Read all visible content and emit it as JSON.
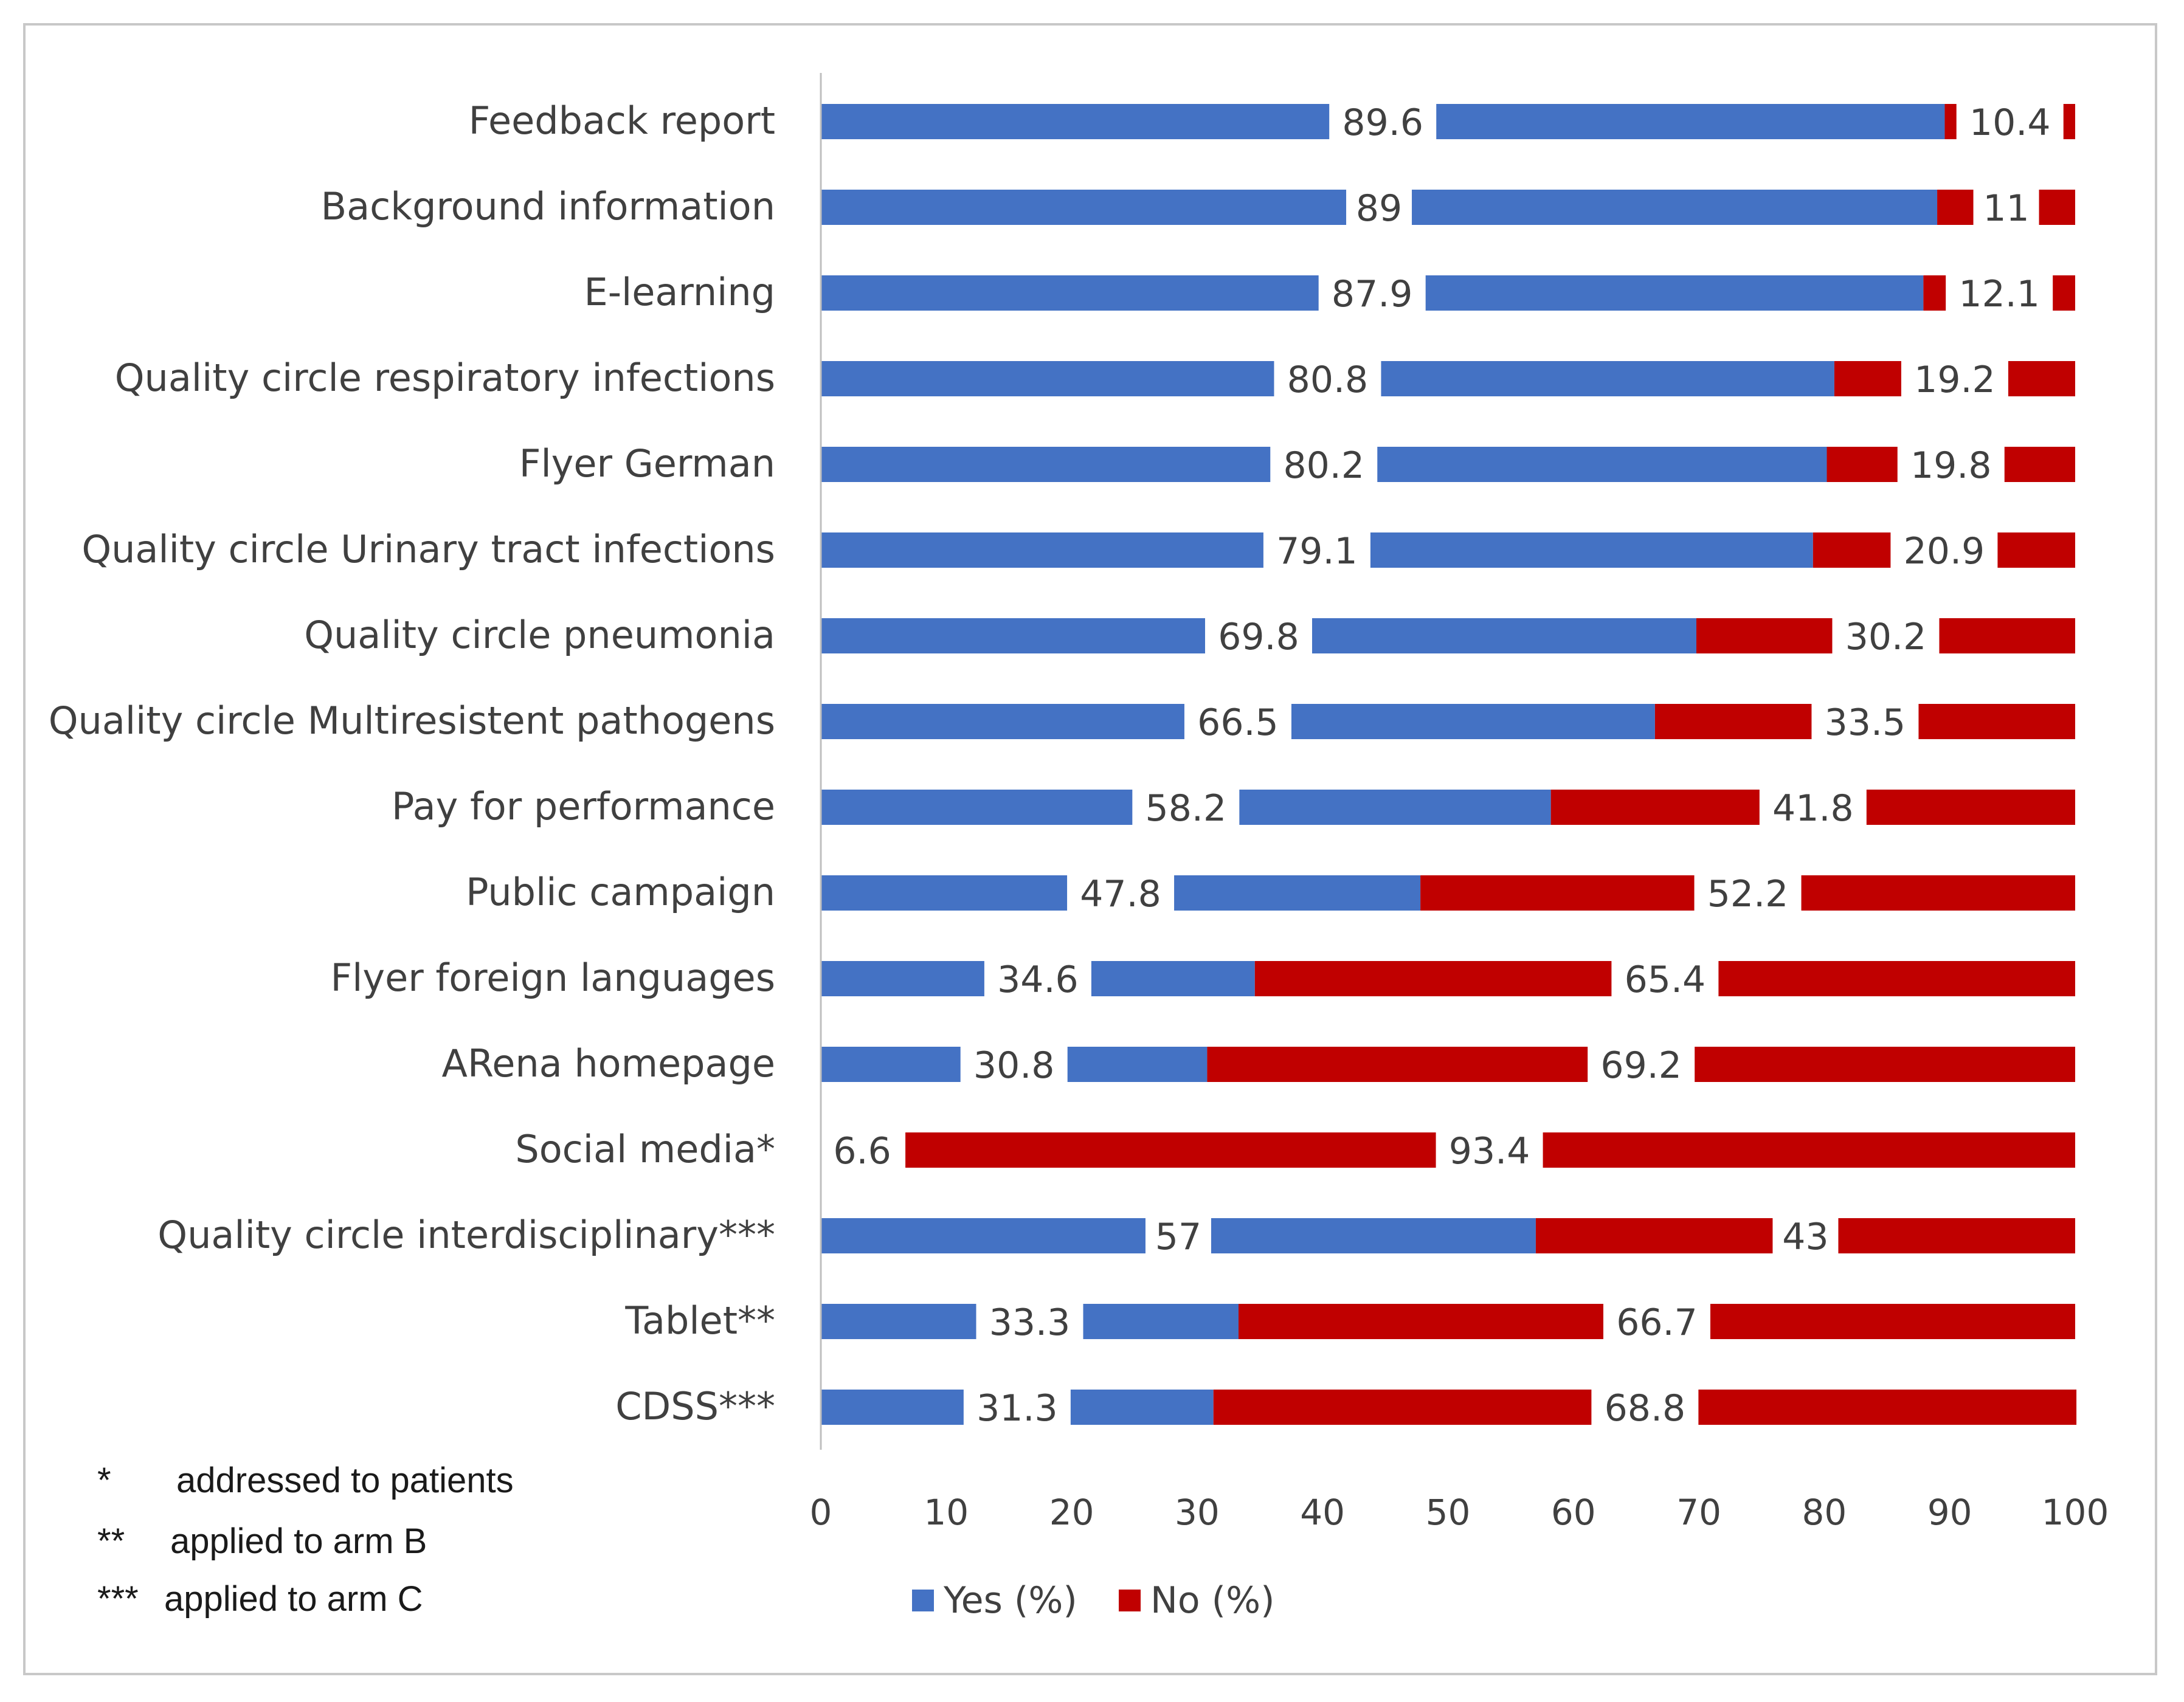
{
  "chart_data": {
    "type": "bar",
    "stacked": true,
    "orientation": "horizontal",
    "title": "",
    "xlabel": "",
    "ylabel": "",
    "xlim": [
      0,
      100
    ],
    "x_ticks": [
      0,
      10,
      20,
      30,
      40,
      50,
      60,
      70,
      80,
      90,
      100
    ],
    "grid": false,
    "legend_position": "bottom",
    "categories": [
      "Feedback report",
      "Background information",
      "E-learning",
      "Quality circle respiratory infections",
      "Flyer German",
      "Quality circle Urinary tract infections",
      "Quality circle pneumonia",
      "Quality circle Multiresistent pathogens",
      "Pay for performance",
      "Public campaign",
      "Flyer foreign languages",
      "ARena homepage",
      "Social media*",
      "Quality circle interdisciplinary***",
      "Tablet**",
      "CDSS***"
    ],
    "series": [
      {
        "name": "Yes (%)",
        "color": "#4472c4",
        "values": [
          89.6,
          89,
          87.9,
          80.8,
          80.2,
          79.1,
          69.8,
          66.5,
          58.2,
          47.8,
          34.6,
          30.8,
          6.6,
          57,
          33.3,
          31.3
        ],
        "labels": [
          "89.6",
          "89",
          "87.9",
          "80.8",
          "80.2",
          "79.1",
          "69.8",
          "66.5",
          "58.2",
          "47.8",
          "34.6",
          "30.8",
          "6.6",
          "57",
          "33.3",
          "31.3"
        ]
      },
      {
        "name": "No (%)",
        "color": "#c00000",
        "values": [
          10.4,
          11,
          12.1,
          19.2,
          19.8,
          20.9,
          30.2,
          33.5,
          41.8,
          52.2,
          65.4,
          69.2,
          93.4,
          43,
          66.7,
          68.8
        ],
        "labels": [
          "10.4",
          "11",
          "12.1",
          "19.2",
          "19.8",
          "20.9",
          "30.2",
          "33.5",
          "41.8",
          "52.2",
          "65.4",
          "69.2",
          "93.4",
          "43",
          "66.7",
          "68.8"
        ]
      }
    ]
  },
  "footnotes": [
    {
      "mark": "*",
      "text": "addressed to patients"
    },
    {
      "mark": "**",
      "text": "applied to arm B"
    },
    {
      "mark": "***",
      "text": "applied to arm C"
    }
  ]
}
